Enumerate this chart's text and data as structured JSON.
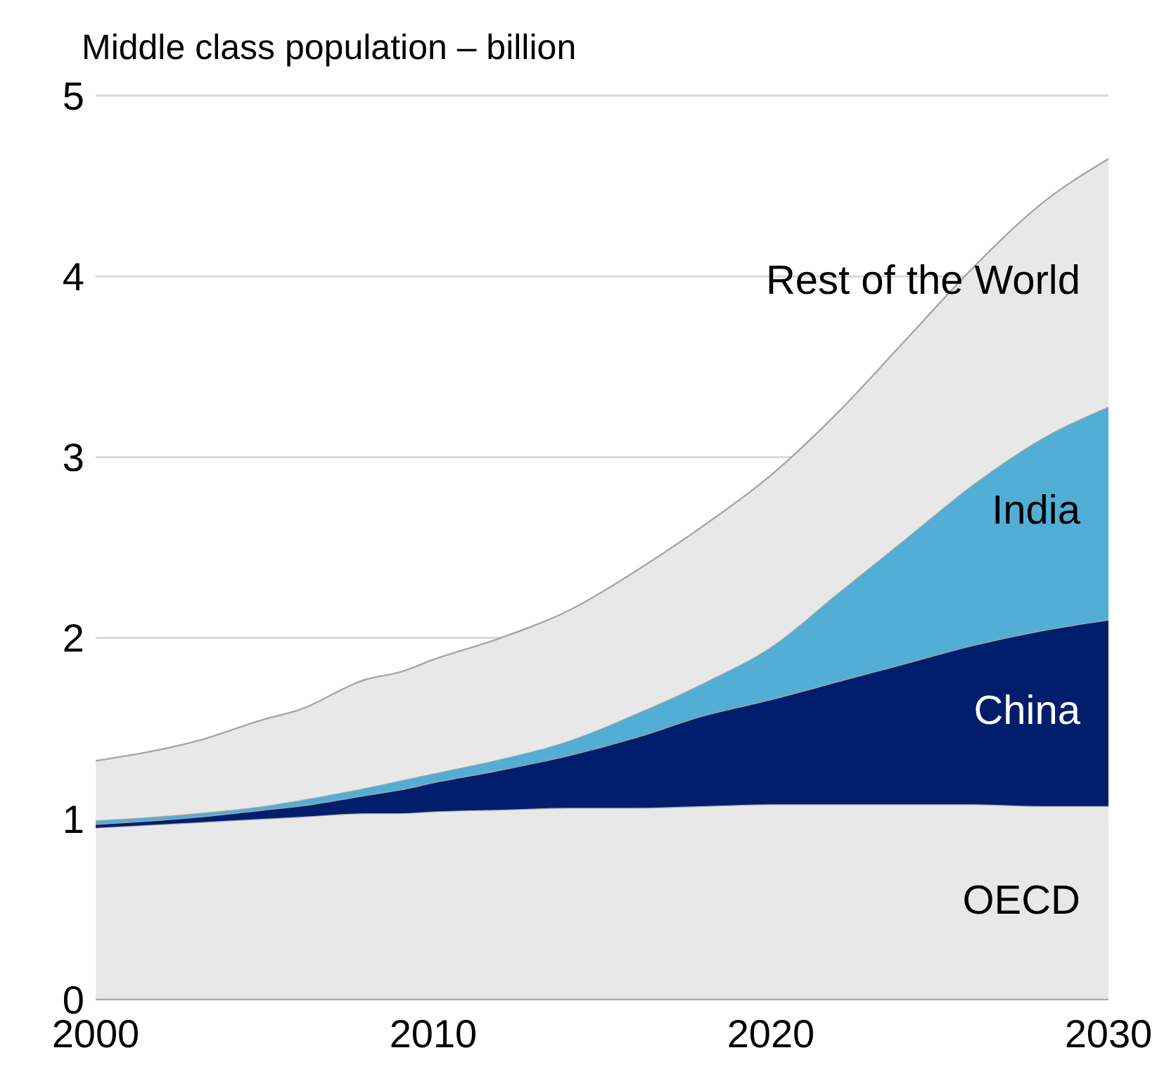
{
  "chart_data": {
    "type": "area",
    "stacked": true,
    "ylabel": "Middle class population – billion",
    "x": [
      2000,
      2003,
      2005,
      2006,
      2008,
      2009,
      2010,
      2012,
      2014,
      2016,
      2018,
      2020,
      2022,
      2024,
      2026,
      2028,
      2030
    ],
    "series": [
      {
        "name": "OECD",
        "color": "#e8e8e8",
        "values": [
          0.95,
          0.98,
          1.0,
          1.01,
          1.03,
          1.03,
          1.04,
          1.05,
          1.06,
          1.06,
          1.07,
          1.08,
          1.08,
          1.08,
          1.08,
          1.07,
          1.07
        ]
      },
      {
        "name": "China",
        "color": "#001e6c",
        "values": [
          0.02,
          0.03,
          0.05,
          0.06,
          0.1,
          0.13,
          0.16,
          0.22,
          0.29,
          0.39,
          0.5,
          0.58,
          0.68,
          0.78,
          0.88,
          0.97,
          1.03
        ]
      },
      {
        "name": "India",
        "color": "#52aed4",
        "values": [
          0.02,
          0.02,
          0.02,
          0.03,
          0.04,
          0.05,
          0.05,
          0.06,
          0.08,
          0.13,
          0.18,
          0.29,
          0.49,
          0.69,
          0.89,
          1.06,
          1.18
        ]
      },
      {
        "name": "Rest of the World",
        "color": "#e8e8e8",
        "values": [
          0.33,
          0.4,
          0.48,
          0.5,
          0.6,
          0.6,
          0.63,
          0.67,
          0.72,
          0.79,
          0.87,
          0.95,
          1.0,
          1.1,
          1.2,
          1.3,
          1.37
        ]
      }
    ],
    "xlim": [
      2000,
      2030
    ],
    "xticks": [
      2000,
      2010,
      2020,
      2030
    ],
    "ylim": [
      0,
      5
    ],
    "yticks": [
      0,
      1,
      2,
      3,
      4,
      5
    ],
    "grid": "y",
    "legend": false
  }
}
